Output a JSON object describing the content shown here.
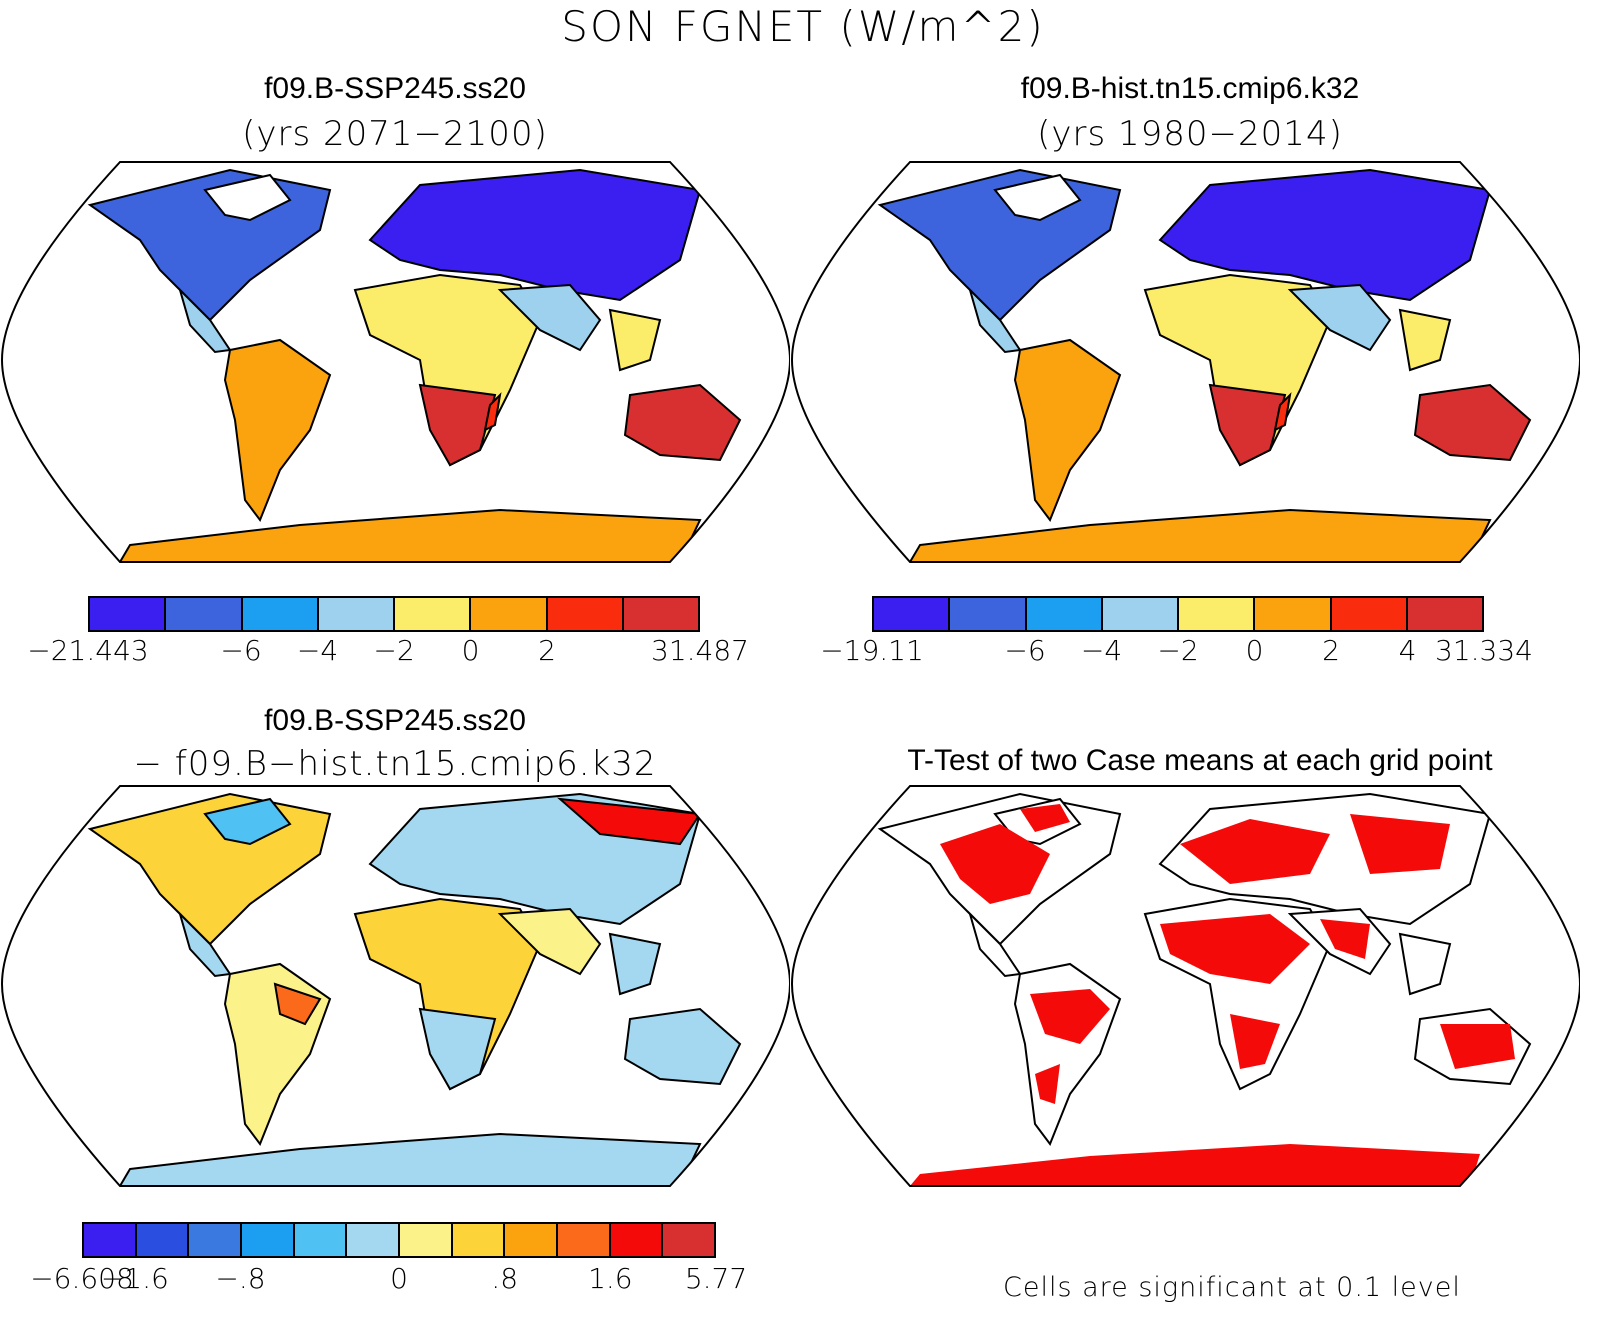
{
  "figure": {
    "title": "SON FGNET (W/m^2)"
  },
  "panels": [
    {
      "title": "f09.B-SSP245.ss20",
      "subtitle": "(yrs 2071−2100)",
      "colorbar": {
        "colors": [
          "#3a1ff0",
          "#3d64dd",
          "#1c9ff0",
          "#9dd1ee",
          "#fbec6a",
          "#fba20f",
          "#fa2c0e",
          "#d83030"
        ],
        "ticks": [
          "−21.443",
          "",
          "−6",
          "−4",
          "−2",
          "0",
          "2",
          "",
          "31.487"
        ]
      }
    },
    {
      "title": "f09.B-hist.tn15.cmip6.k32",
      "subtitle": "(yrs 1980−2014)",
      "colorbar": {
        "colors": [
          "#3a1ff0",
          "#3d64dd",
          "#1c9ff0",
          "#9dd1ee",
          "#fbec6a",
          "#fba20f",
          "#fa2c0e",
          "#d83030"
        ],
        "ticks": [
          "−19.11",
          "",
          "−6",
          "−4",
          "−2",
          "0",
          "2",
          "4",
          "31.334"
        ]
      }
    },
    {
      "title": "f09.B-SSP245.ss20",
      "subtitle": "− f09.B−hist.tn15.cmip6.k32",
      "colorbar": {
        "colors": [
          "#3a1ff0",
          "#2a4ee0",
          "#3a7ae0",
          "#1c9ff0",
          "#4fc1f2",
          "#a4d8f0",
          "#fbf28a",
          "#fcd43a",
          "#fba20f",
          "#fb6a1a",
          "#f50a0a",
          "#d83030"
        ],
        "ticks": [
          "−6.608",
          "−1.6",
          "",
          "−.8",
          "",
          "",
          "0",
          "",
          ".8",
          "",
          "1.6",
          "",
          "5.77"
        ]
      }
    },
    {
      "title": "T-Test of two Case means at each grid point",
      "note": "Cells are significant at 0.1 level",
      "significant_color": "#f50a0a"
    }
  ]
}
